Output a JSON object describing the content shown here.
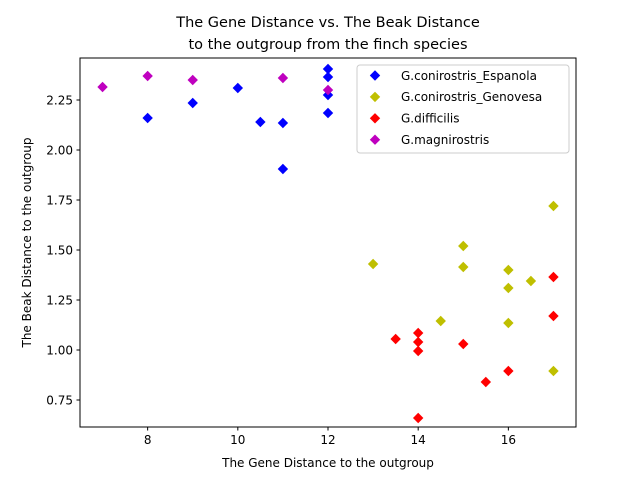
{
  "chart_data": {
    "type": "scatter",
    "title_lines": [
      "The Gene Distance vs. The Beak Distance",
      "to the outgroup from the finch species"
    ],
    "xlabel": "The Gene Distance to the outgroup",
    "ylabel": "The Beak Distance to the outgroup",
    "xlim": [
      6.5,
      17.5
    ],
    "ylim": [
      0.615,
      2.46
    ],
    "xticks": [
      8,
      10,
      12,
      14,
      16
    ],
    "yticks": [
      0.75,
      1.0,
      1.25,
      1.5,
      1.75,
      2.0,
      2.25
    ],
    "xtick_labels": [
      "8",
      "10",
      "12",
      "14",
      "16"
    ],
    "ytick_labels": [
      "0.75",
      "1.00",
      "1.25",
      "1.50",
      "1.75",
      "2.00",
      "2.25"
    ],
    "grid": false,
    "legend_position": "top-right",
    "marker": "diamond",
    "series": [
      {
        "name": "G.conirostris_Espanola",
        "color": "#0000ff",
        "points": [
          [
            8,
            2.16
          ],
          [
            9,
            2.235
          ],
          [
            10,
            2.31
          ],
          [
            10.5,
            2.14
          ],
          [
            11,
            2.135
          ],
          [
            11,
            1.905
          ],
          [
            12,
            2.405
          ],
          [
            12,
            2.365
          ],
          [
            12,
            2.275
          ],
          [
            12,
            2.185
          ]
        ]
      },
      {
        "name": "G.conirostris_Genovesa",
        "color": "#bfbf00",
        "points": [
          [
            13,
            1.43
          ],
          [
            14.5,
            1.145
          ],
          [
            15,
            1.52
          ],
          [
            15,
            1.415
          ],
          [
            16,
            1.4
          ],
          [
            16,
            1.31
          ],
          [
            16,
            1.135
          ],
          [
            16.5,
            1.345
          ],
          [
            17,
            1.72
          ],
          [
            17,
            0.895
          ]
        ]
      },
      {
        "name": "G.difficilis",
        "color": "#ff0000",
        "points": [
          [
            13.5,
            1.055
          ],
          [
            14,
            1.085
          ],
          [
            14,
            1.04
          ],
          [
            14,
            0.995
          ],
          [
            14,
            0.66
          ],
          [
            15,
            1.03
          ],
          [
            15.5,
            0.84
          ],
          [
            16,
            0.895
          ],
          [
            17,
            1.365
          ],
          [
            17,
            1.17
          ]
        ]
      },
      {
        "name": "G.magnirostris",
        "color": "#bf00bf",
        "points": [
          [
            7,
            2.315
          ],
          [
            8,
            2.37
          ],
          [
            9,
            2.35
          ],
          [
            11,
            2.36
          ],
          [
            12,
            2.3
          ]
        ]
      }
    ]
  }
}
